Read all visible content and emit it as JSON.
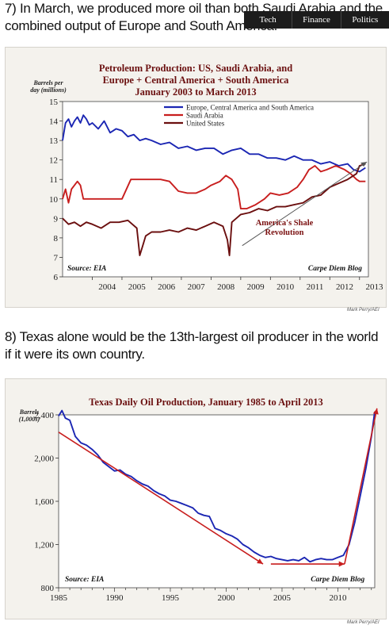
{
  "headings": {
    "item7": "7) In March, we produced more oil than both Saudi Arabia and the combined output of Europe and South America.",
    "item8": "8) Texas alone would be the 13th-largest oil producer in the world if it were its own country."
  },
  "nav": {
    "tabs": [
      "Tech",
      "Finance",
      "Politics"
    ]
  },
  "credits": {
    "chart1": "Mark Perry/AEI",
    "chart2": "Mark Perry/AEI"
  },
  "colors": {
    "panel_bg": "#f4f2ed",
    "blue": "#1b26b3",
    "red": "#c81e1e",
    "darkred": "#6b0f0f",
    "title": "#6b1010"
  },
  "chart_data": [
    {
      "type": "line",
      "title_lines": [
        "Petroleum Production: US, Saudi Arabia, and",
        "Europe + Central America + South America",
        "January 2003 to March 2013"
      ],
      "ylabel_lines": [
        "Barrels per",
        "day (millions)"
      ],
      "xlim": [
        2003,
        2013.3
      ],
      "ylim": [
        6,
        15
      ],
      "yticks": [
        "6",
        "7",
        "8",
        "9",
        "10",
        "11",
        "12",
        "13",
        "14",
        "15"
      ],
      "xticks": [
        "2004",
        "2005",
        "2006",
        "2007",
        "2008",
        "2009",
        "2010",
        "2011",
        "2012",
        "2013"
      ],
      "legend": [
        "Europe, Central America and South America",
        "Saudi Arabia",
        "United States"
      ],
      "annotation_lines": [
        "America's Shale",
        "Revolution"
      ],
      "source": "Source: EIA",
      "blog": "Carpe Diem Blog",
      "series": [
        {
          "name": "Europe, Central America and South America",
          "color": "#1b26b3",
          "x": [
            2003.0,
            2003.1,
            2003.2,
            2003.3,
            2003.4,
            2003.5,
            2003.6,
            2003.7,
            2003.8,
            2003.9,
            2004.0,
            2004.2,
            2004.4,
            2004.6,
            2004.8,
            2005.0,
            2005.2,
            2005.4,
            2005.6,
            2005.8,
            2006.0,
            2006.3,
            2006.6,
            2006.9,
            2007.2,
            2007.5,
            2007.8,
            2008.1,
            2008.4,
            2008.7,
            2009.0,
            2009.3,
            2009.6,
            2009.9,
            2010.2,
            2010.5,
            2010.8,
            2011.1,
            2011.4,
            2011.7,
            2012.0,
            2012.3,
            2012.6,
            2012.8,
            2013.0,
            2013.2
          ],
          "y": [
            13.0,
            13.9,
            14.1,
            13.7,
            14.0,
            14.2,
            13.9,
            14.3,
            14.1,
            13.8,
            13.9,
            13.6,
            14.0,
            13.4,
            13.6,
            13.5,
            13.2,
            13.3,
            13.0,
            13.1,
            13.0,
            12.8,
            12.9,
            12.6,
            12.7,
            12.5,
            12.6,
            12.6,
            12.3,
            12.5,
            12.6,
            12.3,
            12.3,
            12.1,
            12.1,
            12.0,
            12.2,
            12.0,
            12.0,
            11.8,
            11.9,
            11.7,
            11.8,
            11.5,
            11.4,
            11.6
          ]
        },
        {
          "name": "Saudi Arabia",
          "color": "#c81e1e",
          "x": [
            2003.0,
            2003.1,
            2003.2,
            2003.3,
            2003.5,
            2003.6,
            2003.7,
            2004.0,
            2004.3,
            2004.6,
            2005.0,
            2005.3,
            2005.6,
            2005.9,
            2006.3,
            2006.6,
            2006.9,
            2007.2,
            2007.5,
            2007.8,
            2008.0,
            2008.3,
            2008.5,
            2008.7,
            2008.9,
            2009.0,
            2009.2,
            2009.5,
            2009.8,
            2010.0,
            2010.3,
            2010.6,
            2010.9,
            2011.1,
            2011.3,
            2011.5,
            2011.7,
            2011.9,
            2012.2,
            2012.5,
            2012.7,
            2012.9,
            2013.0,
            2013.2
          ],
          "y": [
            10.0,
            10.5,
            9.8,
            10.5,
            10.9,
            10.7,
            10.0,
            10.0,
            10.0,
            10.0,
            10.0,
            11.0,
            11.0,
            11.0,
            11.0,
            10.9,
            10.4,
            10.3,
            10.3,
            10.5,
            10.7,
            10.9,
            11.2,
            11.0,
            10.5,
            9.5,
            9.5,
            9.7,
            10.0,
            10.3,
            10.2,
            10.3,
            10.6,
            11.0,
            11.5,
            11.7,
            11.4,
            11.5,
            11.7,
            11.5,
            11.3,
            11.0,
            10.9,
            10.9
          ]
        },
        {
          "name": "United States",
          "color": "#6b0f0f",
          "x": [
            2003.0,
            2003.2,
            2003.4,
            2003.6,
            2003.8,
            2004.0,
            2004.3,
            2004.6,
            2004.9,
            2005.2,
            2005.5,
            2005.6,
            2005.7,
            2005.8,
            2006.0,
            2006.3,
            2006.6,
            2006.9,
            2007.2,
            2007.5,
            2007.8,
            2008.1,
            2008.4,
            2008.55,
            2008.62,
            2008.7,
            2008.85,
            2009.0,
            2009.3,
            2009.6,
            2009.9,
            2010.2,
            2010.5,
            2010.8,
            2011.1,
            2011.4,
            2011.7,
            2012.0,
            2012.3,
            2012.6,
            2012.9,
            2013.0,
            2013.2
          ],
          "y": [
            9.0,
            8.7,
            8.8,
            8.6,
            8.8,
            8.7,
            8.5,
            8.8,
            8.8,
            8.9,
            8.5,
            7.1,
            7.6,
            8.1,
            8.3,
            8.3,
            8.4,
            8.3,
            8.5,
            8.4,
            8.6,
            8.8,
            8.6,
            7.9,
            7.1,
            8.8,
            9.0,
            9.2,
            9.3,
            9.5,
            9.4,
            9.6,
            9.6,
            9.7,
            9.8,
            10.1,
            10.2,
            10.6,
            10.8,
            11.0,
            11.3,
            11.7,
            11.8
          ]
        }
      ]
    },
    {
      "type": "line",
      "title": "Texas Daily Oil Production, January 1985 to April 2013",
      "ylabel_lines": [
        "Barrels",
        "(1,000s)"
      ],
      "xlim": [
        1985,
        2013.3
      ],
      "ylim": [
        800,
        2400
      ],
      "yticks": [
        "800",
        "1,200",
        "1,600",
        "2,000",
        "2,400"
      ],
      "xticks": [
        "1985",
        "1990",
        "1995",
        "2000",
        "2005",
        "2010"
      ],
      "source": "Source: EIA",
      "blog": "Carpe Diem Blog",
      "series": [
        {
          "name": "Texas daily oil production",
          "color": "#1b26b3",
          "x": [
            1985.0,
            1985.3,
            1985.6,
            1986.0,
            1986.5,
            1987.0,
            1987.5,
            1988.0,
            1988.5,
            1989.0,
            1989.5,
            1990.0,
            1990.5,
            1991.0,
            1991.5,
            1992.0,
            1992.5,
            1993.0,
            1993.5,
            1994.0,
            1994.5,
            1995.0,
            1995.5,
            1996.0,
            1996.5,
            1997.0,
            1997.5,
            1998.0,
            1998.5,
            1999.0,
            1999.5,
            2000.0,
            2000.5,
            2001.0,
            2001.5,
            2002.0,
            2002.5,
            2003.0,
            2003.5,
            2004.0,
            2004.5,
            2005.0,
            2005.5,
            2006.0,
            2006.5,
            2007.0,
            2007.5,
            2008.0,
            2008.5,
            2009.0,
            2009.5,
            2010.0,
            2010.5,
            2011.0,
            2011.5,
            2012.0,
            2012.5,
            2013.0,
            2013.3
          ],
          "y": [
            2390,
            2440,
            2370,
            2350,
            2200,
            2140,
            2120,
            2080,
            2030,
            1960,
            1920,
            1880,
            1890,
            1850,
            1830,
            1790,
            1760,
            1740,
            1700,
            1670,
            1650,
            1610,
            1600,
            1580,
            1560,
            1540,
            1490,
            1470,
            1460,
            1350,
            1330,
            1300,
            1280,
            1250,
            1200,
            1170,
            1130,
            1100,
            1080,
            1090,
            1070,
            1060,
            1050,
            1060,
            1050,
            1080,
            1040,
            1060,
            1070,
            1060,
            1060,
            1080,
            1100,
            1200,
            1400,
            1650,
            1900,
            2200,
            2430
          ]
        }
      ]
    }
  ]
}
